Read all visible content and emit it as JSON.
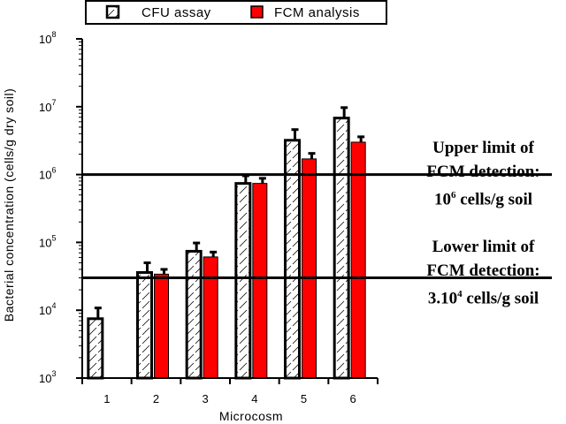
{
  "chart_data": {
    "type": "bar",
    "yscale": "log",
    "ylim": [
      1000,
      100000000
    ],
    "ytick_exponents": [
      3,
      4,
      5,
      6,
      7,
      8
    ],
    "ytick_base": "10",
    "categories": [
      "1",
      "2",
      "3",
      "4",
      "5",
      "6"
    ],
    "xlabel": "Microcosm",
    "ylabel": "Bacterial concentration (cells/g dry soil)",
    "series": [
      {
        "name": "CFU assay",
        "pattern": "hatched-white",
        "values": [
          7500,
          36000,
          74000,
          740000,
          3200000,
          6800000
        ],
        "errors_upper": [
          10800,
          50000,
          98000,
          960000,
          4600000,
          9700000
        ]
      },
      {
        "name": "FCM analysis",
        "color": "#ff0000",
        "values": [
          null,
          34000,
          61000,
          740000,
          1700000,
          3000000
        ],
        "errors_upper": [
          null,
          40000,
          72000,
          880000,
          2050000,
          3600000
        ]
      }
    ],
    "reference_lines": [
      {
        "name": "upper-limit",
        "value": 1000000
      },
      {
        "name": "lower-limit",
        "value": 30000
      }
    ],
    "legend_position": "top"
  },
  "annotations": {
    "upper": {
      "line1": "Upper limit of",
      "line2": "FCM detection:",
      "line3_base": "10",
      "line3_exp": "6",
      "line3_rest": " cells/g soil"
    },
    "lower": {
      "line1": "Lower limit of",
      "line2": "FCM detection:",
      "line3_base": "3.10",
      "line3_exp": "4",
      "line3_rest": " cells/g soil"
    }
  }
}
